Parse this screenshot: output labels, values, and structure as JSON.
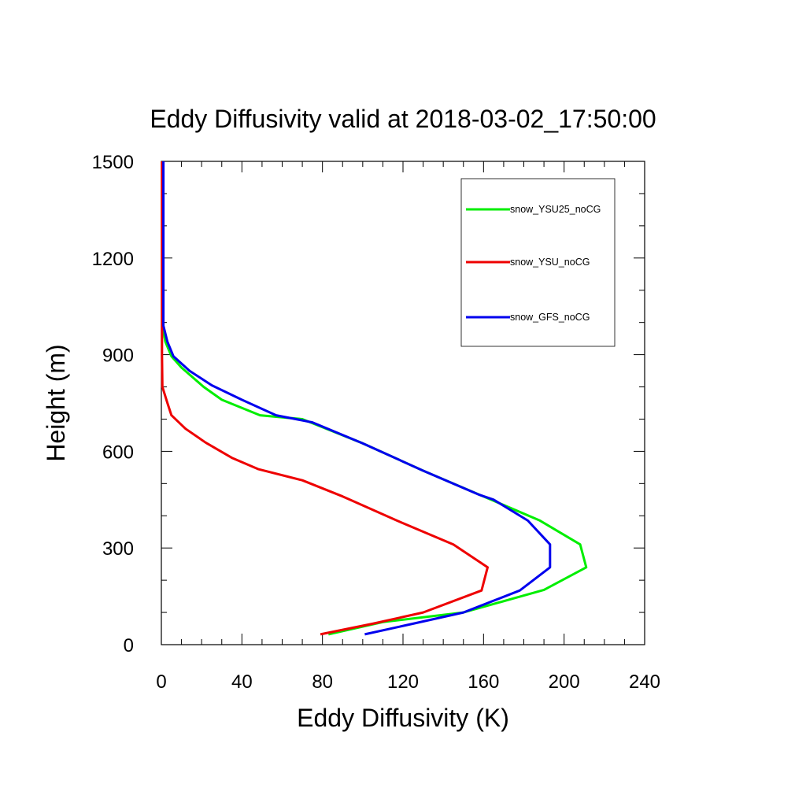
{
  "chart_data": {
    "type": "line",
    "title": "Eddy Diffusivity valid at 2018-03-02_17:50:00",
    "xlabel": "Eddy Diffusivity (K)",
    "ylabel": "Height (m)",
    "xlim": [
      0,
      240
    ],
    "ylim": [
      0,
      1500
    ],
    "xticks": [
      0,
      40,
      80,
      120,
      160,
      200,
      240
    ],
    "yticks": [
      0,
      300,
      600,
      900,
      1200,
      1500
    ],
    "xtick_labels": [
      "0",
      "40",
      "80",
      "120",
      "160",
      "200",
      "240"
    ],
    "ytick_labels": [
      "0",
      "300",
      "600",
      "900",
      "1200",
      "1500"
    ],
    "grid": false,
    "legend_position": "top-right",
    "series": [
      {
        "name": "snow_YSU25_noCG",
        "color": "#00ee00",
        "points": [
          [
            83,
            32
          ],
          [
            110,
            70
          ],
          [
            150,
            100
          ],
          [
            190,
            170
          ],
          [
            211,
            240
          ],
          [
            208,
            311
          ],
          [
            188,
            385
          ],
          [
            160,
            460
          ],
          [
            130,
            540
          ],
          [
            100,
            625
          ],
          [
            70,
            700
          ],
          [
            49,
            712
          ],
          [
            30,
            760
          ],
          [
            21,
            800
          ],
          [
            10,
            860
          ],
          [
            5,
            895
          ],
          [
            2,
            940
          ],
          [
            0.5,
            990
          ],
          [
            0.5,
            1100
          ],
          [
            0.5,
            1200
          ],
          [
            0.5,
            1300
          ],
          [
            0.5,
            1400
          ],
          [
            0.5,
            1500
          ]
        ]
      },
      {
        "name": "snow_YSU_noCG",
        "color": "#ee0000",
        "points": [
          [
            79,
            32
          ],
          [
            105,
            65
          ],
          [
            130,
            100
          ],
          [
            159,
            168
          ],
          [
            162,
            240
          ],
          [
            145,
            311
          ],
          [
            117,
            385
          ],
          [
            90,
            460
          ],
          [
            70,
            510
          ],
          [
            48,
            545
          ],
          [
            35,
            580
          ],
          [
            22,
            627
          ],
          [
            12,
            670
          ],
          [
            5,
            712
          ],
          [
            3,
            750
          ],
          [
            0.5,
            800
          ],
          [
            0.3,
            900
          ],
          [
            0.3,
            1000
          ],
          [
            0.3,
            1100
          ],
          [
            0.3,
            1200
          ],
          [
            0.3,
            1300
          ],
          [
            0.3,
            1400
          ],
          [
            0.3,
            1500
          ]
        ]
      },
      {
        "name": "snow_GFS_noCG",
        "color": "#0000ee",
        "points": [
          [
            101,
            32
          ],
          [
            125,
            65
          ],
          [
            150,
            100
          ],
          [
            178,
            168
          ],
          [
            193,
            240
          ],
          [
            193,
            311
          ],
          [
            182,
            385
          ],
          [
            165,
            450
          ],
          [
            158,
            465
          ],
          [
            130,
            540
          ],
          [
            100,
            625
          ],
          [
            75,
            690
          ],
          [
            57,
            712
          ],
          [
            40,
            760
          ],
          [
            25,
            805
          ],
          [
            14,
            850
          ],
          [
            6,
            895
          ],
          [
            3,
            940
          ],
          [
            1,
            990
          ],
          [
            1,
            1100
          ],
          [
            1,
            1200
          ],
          [
            1,
            1300
          ],
          [
            1,
            1400
          ],
          [
            1,
            1500
          ]
        ]
      }
    ]
  }
}
